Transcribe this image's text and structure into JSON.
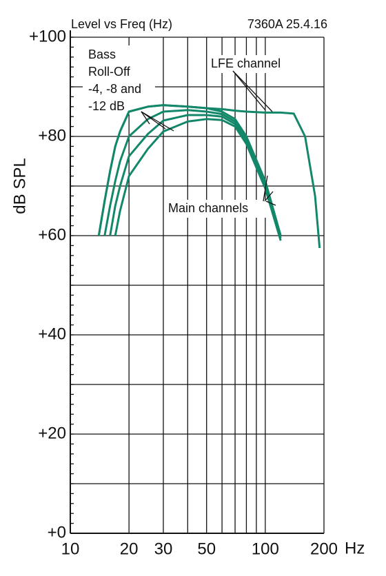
{
  "chart_data": {
    "type": "line",
    "title": "Level vs Freq (Hz)",
    "subtitle": "7360A 25.4.16",
    "y_label": "dB SPL",
    "x_label": "Hz",
    "x_scale": "log",
    "grid": true,
    "color": "#13876a",
    "x": [
      14,
      15,
      16,
      17,
      18,
      20,
      25,
      30,
      40,
      50,
      60,
      70,
      80,
      100,
      120,
      140,
      160,
      180,
      190
    ],
    "series": [
      {
        "values": [
          60,
          67,
          73,
          78,
          81,
          85,
          86,
          86.3,
          86,
          85.7,
          85.5,
          85.2,
          85,
          84.8,
          84.8,
          84.6,
          80,
          68,
          57.5
        ]
      },
      {
        "values": [
          60,
          67,
          73,
          78,
          81,
          85,
          86,
          86.3,
          86,
          85.7,
          85,
          83.5,
          80,
          71,
          60,
          null,
          null,
          null,
          null
        ]
      },
      {
        "values": [
          null,
          60,
          66,
          71,
          75,
          80,
          83.5,
          85,
          85.3,
          85,
          84.5,
          83,
          79.5,
          70.5,
          60,
          null,
          null,
          null,
          null
        ]
      },
      {
        "values": [
          null,
          null,
          60,
          66,
          70,
          76,
          80.5,
          83.2,
          84.3,
          84.3,
          84,
          82.5,
          79,
          70,
          59.5,
          null,
          null,
          null,
          null
        ]
      },
      {
        "values": [
          null,
          null,
          null,
          60,
          65,
          72,
          77.5,
          81,
          83,
          83.5,
          83.3,
          82,
          78.5,
          69.5,
          59,
          null,
          null,
          null,
          null
        ]
      }
    ],
    "xlim": [
      10,
      200
    ],
    "xticks": [
      10,
      20,
      30,
      50,
      100,
      200
    ],
    "xminor": [
      40,
      60,
      70,
      80,
      90
    ],
    "ylim": [
      0,
      100
    ],
    "yticks": [
      {
        "value": 0,
        "label": "+0"
      },
      {
        "value": 20,
        "label": "+20"
      },
      {
        "value": 40,
        "label": "+40"
      },
      {
        "value": 60,
        "label": "+60"
      },
      {
        "value": 80,
        "label": "+80"
      },
      {
        "value": 100,
        "label": "+100"
      }
    ],
    "yminor": [
      10,
      30,
      50,
      70,
      90
    ],
    "annotations": [
      "Bass",
      "Roll-Off",
      "-4, -8 and",
      "-12 dB",
      "LFE channel",
      "Main channels"
    ]
  }
}
